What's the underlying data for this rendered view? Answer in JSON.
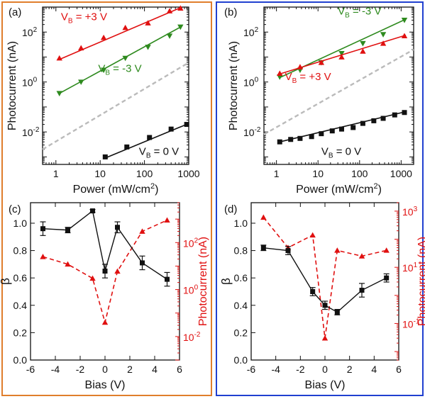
{
  "colors": {
    "left_frame": "#E07E2C",
    "right_frame": "#2040D0",
    "red": "#E01010",
    "green": "#2E8A1E",
    "black": "#111111",
    "gray_dash": "#BBBBBB"
  },
  "chart_data": [
    {
      "panel": "(a)",
      "type": "scatter",
      "xscale": "log",
      "yscale": "log",
      "xlabel": "Power (mW/cm",
      "xlabel_sup": "2",
      "xlabel_end": ")",
      "ylabel": "Photocurrent (nA)",
      "xlim": [
        0.5,
        1000
      ],
      "ylim": [
        0.0005,
        1000
      ],
      "xticks": [
        {
          "v": 1,
          "t": "1"
        },
        {
          "v": 10,
          "t": "10"
        },
        {
          "v": 100,
          "t": "100"
        },
        {
          "v": 1000,
          "t": "1000"
        }
      ],
      "yticks": [
        {
          "v": 0.01,
          "b": "10",
          "e": "-2"
        },
        {
          "v": 1,
          "b": "10",
          "e": "0"
        },
        {
          "v": 100,
          "b": "10",
          "e": "2"
        }
      ],
      "series": [
        {
          "name": "V",
          "sub": "B",
          "rest": " = +3 V",
          "color": "#E01010",
          "marker": "triangle-up",
          "x": [
            1.2,
            3.7,
            12,
            37,
            120,
            370,
            650
          ],
          "y": [
            9,
            23,
            60,
            150,
            230,
            700,
            900
          ],
          "fit": [
            [
              1.2,
              8
            ],
            [
              700,
              1000
            ]
          ],
          "label_x": 1.3,
          "label_y": 300
        },
        {
          "name": "V",
          "sub": "B",
          "rest": " = -3 V",
          "color": "#2E8A1E",
          "marker": "triangle-down",
          "x": [
            1.2,
            3.7,
            12,
            37,
            120,
            370,
            650
          ],
          "y": [
            0.35,
            1,
            3,
            9,
            25,
            70,
            160
          ],
          "fit": [
            [
              1.2,
              0.35
            ],
            [
              700,
              170
            ]
          ],
          "label_x": 9,
          "label_y": 2.5
        },
        {
          "name": "V",
          "sub": "B",
          "rest": " = 0 V",
          "color": "#111111",
          "marker": "square",
          "x": [
            13,
            40,
            130,
            400,
            900
          ],
          "y": [
            0.001,
            0.0025,
            0.006,
            0.013,
            0.02
          ],
          "fit": [
            [
              13,
              0.0009
            ],
            [
              950,
              0.021
            ]
          ],
          "label_x": 75,
          "label_y": 0.0012
        }
      ],
      "ref_line": [
        [
          0.5,
          0.002
        ],
        [
          1000,
          6
        ]
      ]
    },
    {
      "panel": "(b)",
      "type": "scatter",
      "xscale": "log",
      "yscale": "log",
      "xlabel": "Power (mW/cm",
      "xlabel_sup": "2",
      "xlabel_end": ")",
      "ylabel": "Photocurrent (nA)",
      "xlim": [
        0.5,
        2000
      ],
      "ylim": [
        0.0005,
        1000
      ],
      "xticks": [
        {
          "v": 1,
          "t": "1"
        },
        {
          "v": 10,
          "t": "10"
        },
        {
          "v": 100,
          "t": "100"
        },
        {
          "v": 1000,
          "t": "1000"
        }
      ],
      "yticks": [
        {
          "v": 0.01,
          "b": "10",
          "e": "-2"
        },
        {
          "v": 1,
          "b": "10",
          "e": "0"
        },
        {
          "v": 100,
          "b": "10",
          "e": "2"
        }
      ],
      "series": [
        {
          "name": "V",
          "sub": "B",
          "rest": " = -3 V",
          "color": "#2E8A1E",
          "marker": "triangle-down",
          "x": [
            1.2,
            3.7,
            12,
            37,
            120,
            370,
            1200
          ],
          "y": [
            1.6,
            3,
            6,
            14,
            35,
            80,
            300
          ],
          "fit": [
            [
              1.2,
              1.5
            ],
            [
              1300,
              330
            ]
          ],
          "label_x": 30,
          "label_y": 500
        },
        {
          "name": "V",
          "sub": "B",
          "rest": " = +3 V",
          "color": "#E01010",
          "marker": "triangle-up",
          "x": [
            1.2,
            3.7,
            12,
            37,
            120,
            370,
            1200
          ],
          "y": [
            2.2,
            4,
            6,
            10,
            17,
            35,
            70
          ],
          "fit": [
            [
              1.2,
              2.1
            ],
            [
              1300,
              75
            ]
          ],
          "label_x": 1.6,
          "label_y": 1.2
        },
        {
          "name": "V",
          "sub": "B",
          "rest": " = 0 V",
          "color": "#111111",
          "marker": "square",
          "x": [
            1.2,
            2.2,
            3.7,
            7,
            12,
            22,
            37,
            70,
            120,
            220,
            370,
            700,
            1200
          ],
          "y": [
            0.004,
            0.005,
            0.0055,
            0.0065,
            0.0085,
            0.011,
            0.013,
            0.015,
            0.022,
            0.028,
            0.035,
            0.048,
            0.06
          ],
          "fit": [
            [
              1.2,
              0.004
            ],
            [
              1300,
              0.065
            ]
          ],
          "label_x": 12,
          "label_y": 0.0012
        }
      ],
      "ref_line": [
        [
          0.5,
          0.008
        ],
        [
          2000,
          20
        ]
      ]
    },
    {
      "panel": "(c)",
      "type": "line",
      "xlabel": "Bias (V)",
      "ylabel": "β",
      "y2label": "Photocurrent (nA)",
      "xlim": [
        -6,
        6
      ],
      "ylim": [
        0,
        1.15
      ],
      "y2scale": "log",
      "y2lim": [
        0.001,
        5000
      ],
      "xticks": [
        -6,
        -4,
        -2,
        0,
        2,
        4,
        6
      ],
      "yticks": [
        {
          "v": 0,
          "t": "0.0"
        },
        {
          "v": 0.2,
          "t": "0.2"
        },
        {
          "v": 0.4,
          "t": "0.4"
        },
        {
          "v": 0.6,
          "t": "0.6"
        },
        {
          "v": 0.8,
          "t": "0.8"
        },
        {
          "v": 1.0,
          "t": "1.0"
        }
      ],
      "y2ticks": [
        {
          "v": 0.01,
          "b": "10",
          "e": "-2"
        },
        {
          "v": 1,
          "b": "10",
          "e": "0"
        },
        {
          "v": 100,
          "b": "10",
          "e": "2"
        }
      ],
      "beta": {
        "x": [
          -5,
          -3,
          -1,
          0,
          1,
          3,
          5
        ],
        "y": [
          0.96,
          0.95,
          1.09,
          0.65,
          0.97,
          0.71,
          0.59
        ],
        "err": [
          0.05,
          0.02,
          0.01,
          0.05,
          0.04,
          0.05,
          0.05
        ]
      },
      "photocurrent": {
        "x": [
          -5,
          -3,
          -1,
          0,
          1,
          3,
          5
        ],
        "y": [
          25,
          12,
          3,
          0.04,
          6,
          300,
          900
        ]
      }
    },
    {
      "panel": "(d)",
      "type": "line",
      "xlabel": "Bias (V)",
      "ylabel": "β",
      "y2label": "Photocurrent (nA)",
      "xlim": [
        -6,
        6
      ],
      "ylim": [
        0,
        1.15
      ],
      "y2scale": "log",
      "y2lim": [
        0.005,
        2000
      ],
      "xticks": [
        -6,
        -4,
        -2,
        0,
        2,
        4,
        6
      ],
      "yticks": [
        {
          "v": 0,
          "t": "0.0"
        },
        {
          "v": 0.2,
          "t": "0.2"
        },
        {
          "v": 0.4,
          "t": "0.4"
        },
        {
          "v": 0.6,
          "t": "0.6"
        },
        {
          "v": 0.8,
          "t": "0.8"
        },
        {
          "v": 1.0,
          "t": "1.0"
        }
      ],
      "y2ticks": [
        {
          "v": 0.1,
          "b": "10",
          "e": "-1"
        },
        {
          "v": 10,
          "b": "10",
          "e": "1"
        },
        {
          "v": 1000,
          "b": "10",
          "e": "3"
        }
      ],
      "beta": {
        "x": [
          -5,
          -3,
          -1,
          0,
          1,
          3,
          5
        ],
        "y": [
          0.82,
          0.8,
          0.5,
          0.4,
          0.35,
          0.51,
          0.6
        ],
        "err": [
          0.02,
          0.03,
          0.03,
          0.03,
          0.02,
          0.05,
          0.03
        ]
      },
      "photocurrent": {
        "x": [
          -5,
          -3,
          -1,
          0,
          1,
          3,
          5
        ],
        "y": [
          600,
          50,
          140,
          0.03,
          40,
          25,
          40
        ]
      }
    }
  ]
}
